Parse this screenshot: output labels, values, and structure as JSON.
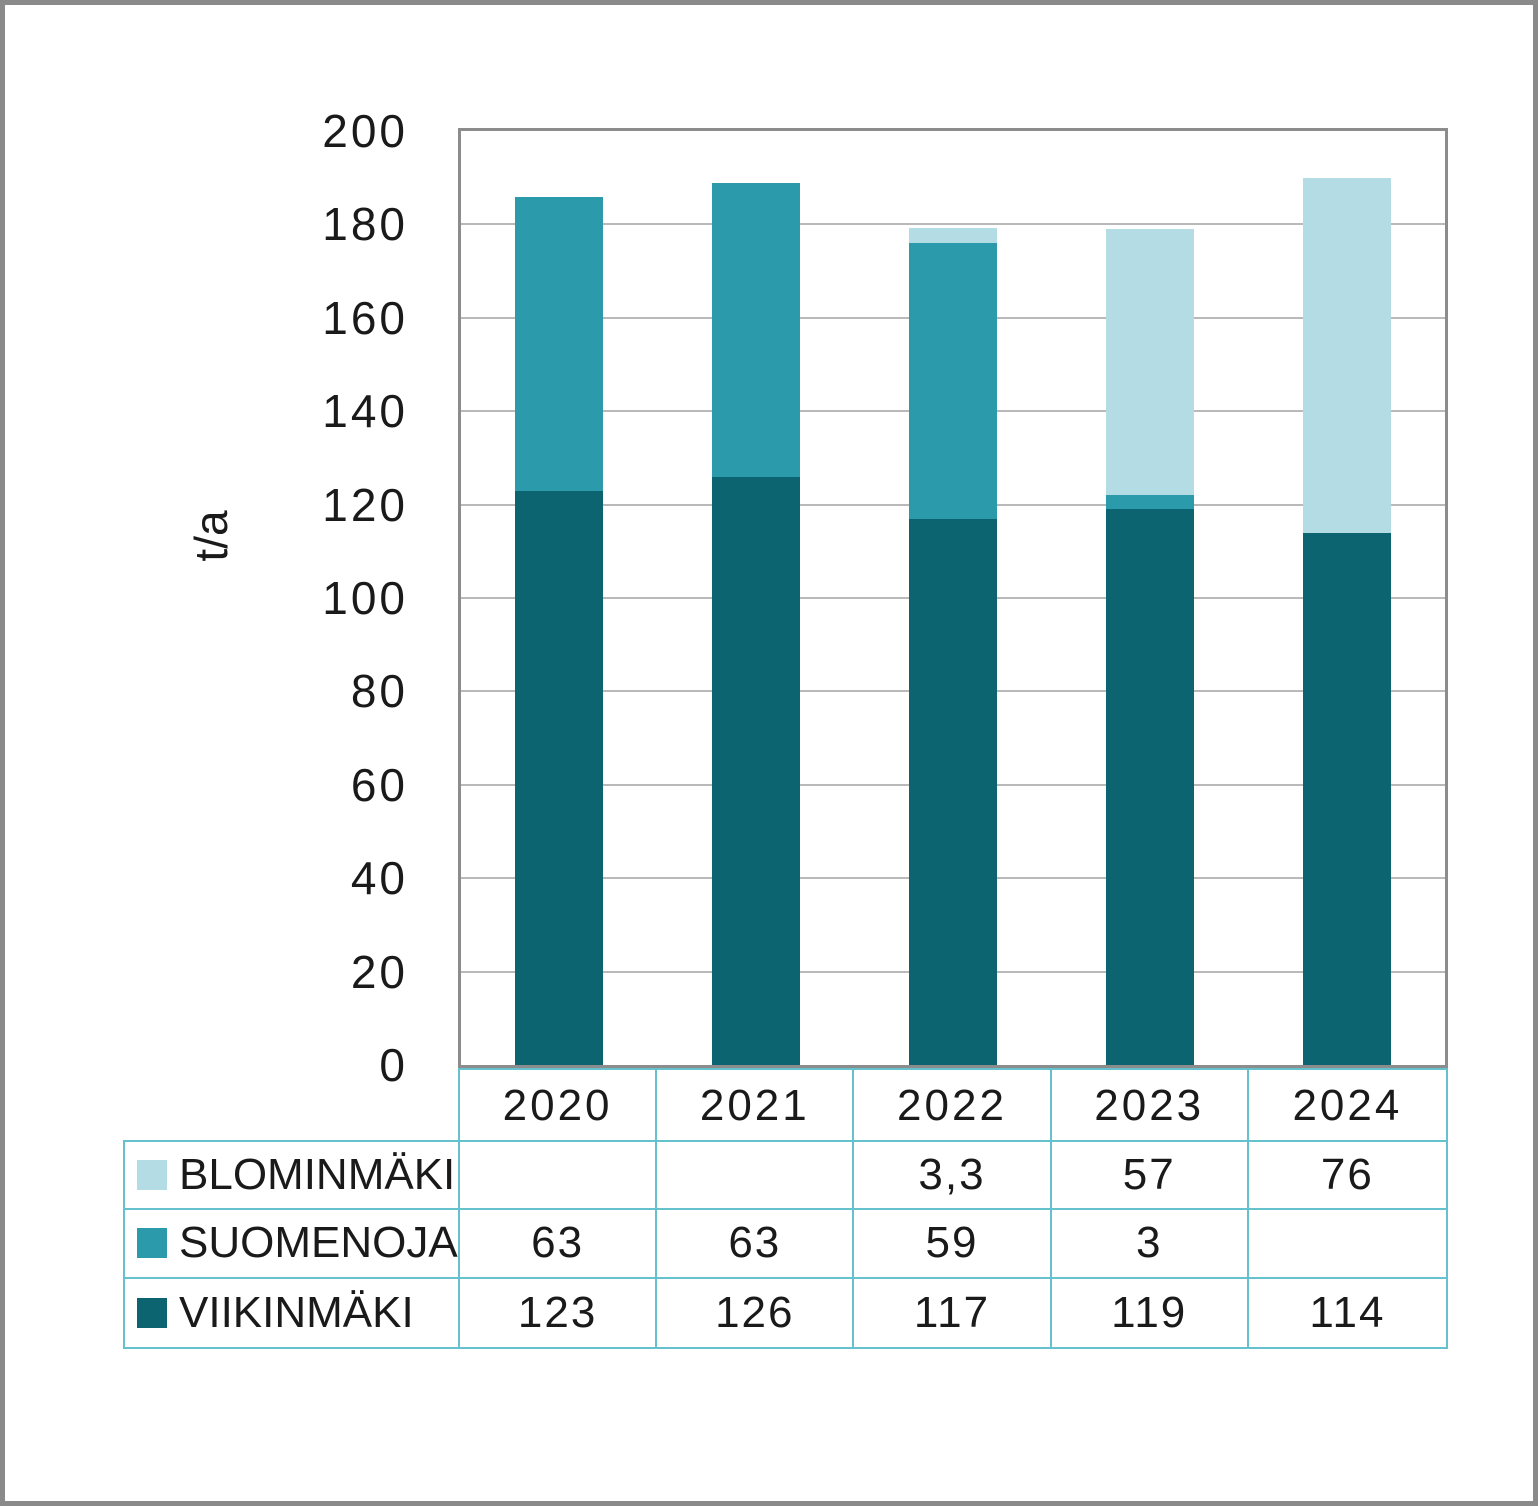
{
  "page": {
    "background": "#FFFFFF",
    "outer_border_color": "#8A8A8A"
  },
  "chart_data": {
    "type": "bar",
    "stacked": true,
    "title": "",
    "xlabel": "",
    "ylabel": "t/a",
    "ylim": [
      0,
      200
    ],
    "ytick_step": 20,
    "ytick_labels": [
      "0",
      "20",
      "40",
      "60",
      "80",
      "100",
      "120",
      "140",
      "160",
      "180",
      "200"
    ],
    "grid": true,
    "categories": [
      "2020",
      "2021",
      "2022",
      "2023",
      "2024"
    ],
    "series": [
      {
        "name": "BLOMINMÄKI",
        "color": "#B3DCE4",
        "values": [
          null,
          null,
          3.3,
          57,
          76
        ],
        "display": [
          "",
          "",
          "3,3",
          "57",
          "76"
        ]
      },
      {
        "name": "SUOMENOJA",
        "color": "#2B9AAA",
        "values": [
          63,
          63,
          59,
          3,
          null
        ],
        "display": [
          "63",
          "63",
          "59",
          "3",
          ""
        ]
      },
      {
        "name": "VIIKINMÄKI",
        "color": "#0B6470",
        "values": [
          123,
          126,
          117,
          119,
          114
        ],
        "display": [
          "123",
          "126",
          "117",
          "119",
          "114"
        ]
      }
    ],
    "stack_order_bottom_to_top": [
      "VIIKINMÄKI",
      "SUOMENOJA",
      "BLOMINMÄKI"
    ],
    "totals_by_year": [
      186,
      189,
      179.3,
      179,
      190
    ],
    "legend_position": "table-below-left",
    "axis_color": "#8C8C8C",
    "gridline_color": "#B9B9B9",
    "table_border_color": "#66C1CE",
    "text_color": "#1A1A1A"
  }
}
